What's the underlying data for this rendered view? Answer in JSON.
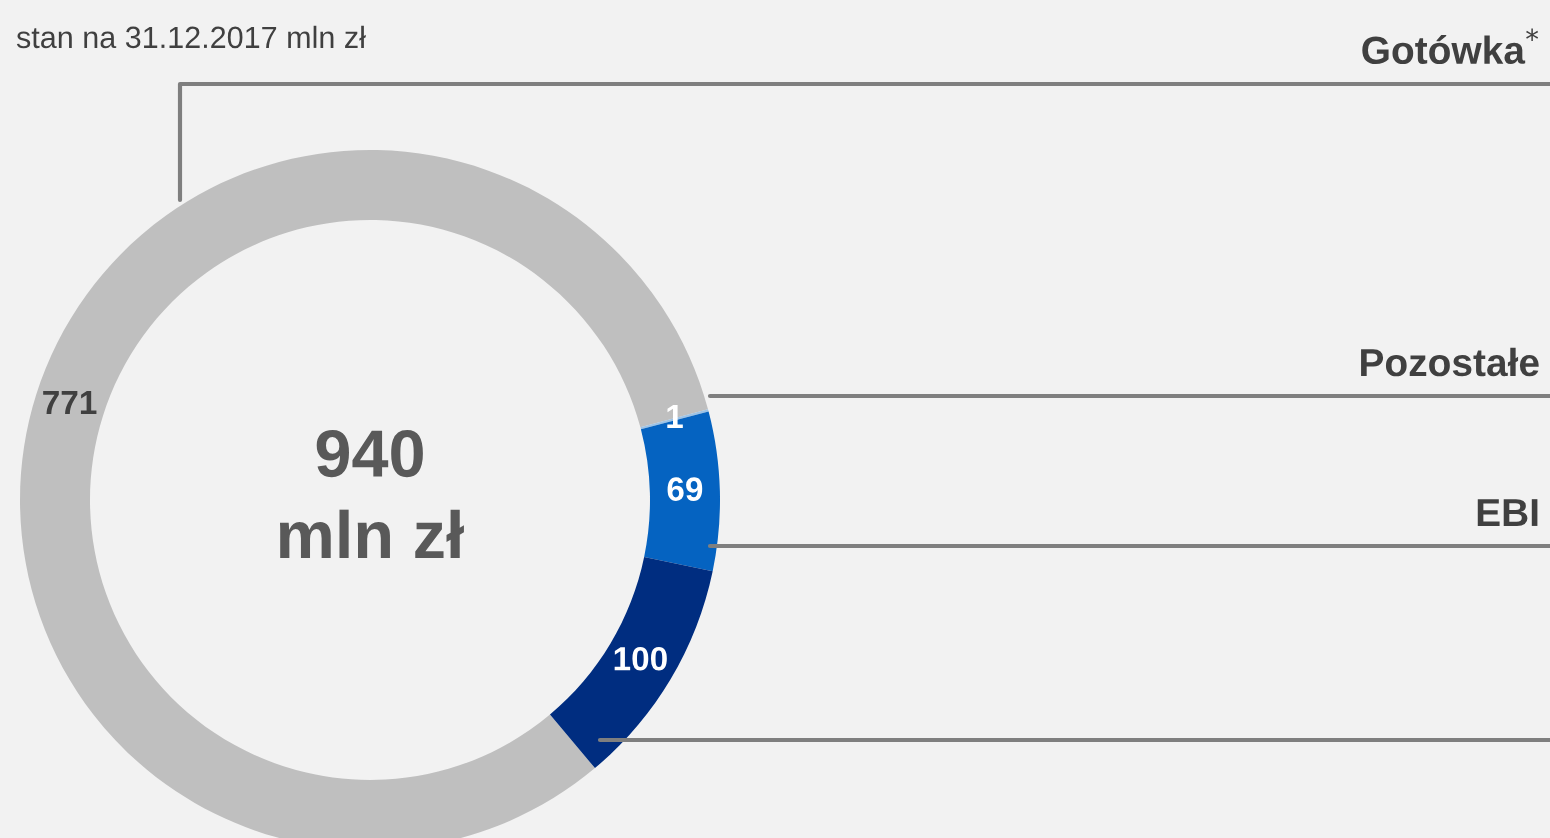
{
  "chart_data": {
    "type": "donut",
    "subtitle": "stan na 31.12.2017 mln zł",
    "categories": [
      "Gotówka$^{*}$",
      "Pozostałe",
      "EBI",
      null
    ],
    "values": [
      771,
      1,
      69,
      100
    ],
    "colors": [
      "#bfbfbf",
      "#9dc3e6",
      "#0563c1",
      "#002d80"
    ],
    "data_labels": true,
    "annotations": [
      "940\nmln zł"
    ],
    "legend": false
  }
}
